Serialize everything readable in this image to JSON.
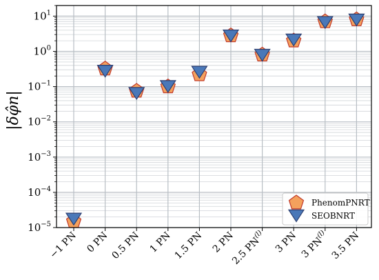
{
  "chart_data": {
    "type": "scatter",
    "title": "",
    "xlabel": "",
    "ylabel": "|δφ̂n|",
    "yscale": "log",
    "ylim": [
      1e-05,
      20
    ],
    "grid": "major and minor",
    "legend_position": "bottom-right",
    "categories": [
      "−1 PN",
      "0 PN",
      "0.5 PN",
      "1 PN",
      "1.5 PN",
      "2 PN",
      "2.5 PN(l)",
      "3 PN",
      "3 PN(l)",
      "3.5 PN"
    ],
    "y_ticks": [
      {
        "value": 1e-05,
        "base": "10",
        "exp": "−5"
      },
      {
        "value": 0.0001,
        "base": "10",
        "exp": "−4"
      },
      {
        "value": 0.001,
        "base": "10",
        "exp": "−3"
      },
      {
        "value": 0.01,
        "base": "10",
        "exp": "−2"
      },
      {
        "value": 0.1,
        "base": "10",
        "exp": "−1"
      },
      {
        "value": 1,
        "base": "10",
        "exp": "0"
      },
      {
        "value": 10,
        "base": "10",
        "exp": "1"
      }
    ],
    "series": [
      {
        "name": "PhenomPNRT",
        "marker": "pentagon",
        "color": "#f4a15d",
        "edge": "#c0392b",
        "values": [
          1.5e-05,
          0.32,
          0.075,
          0.1,
          0.22,
          2.8,
          0.8,
          2.0,
          7.0,
          8.0
        ]
      },
      {
        "name": "SEOBNRT",
        "marker": "triangle-down",
        "color": "#4a78b8",
        "edge": "#2c3e70",
        "values": [
          1.9e-05,
          0.3,
          0.07,
          0.11,
          0.28,
          3.0,
          0.85,
          2.3,
          7.2,
          8.5
        ]
      }
    ]
  }
}
